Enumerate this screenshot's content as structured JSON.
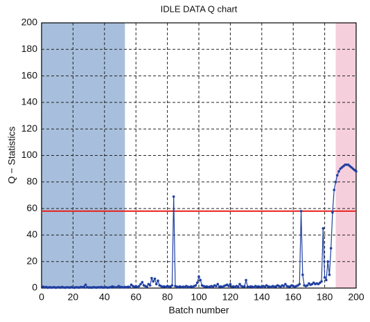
{
  "chart_data": {
    "type": "line",
    "title": "IDLE DATA Q chart",
    "xlabel": "Batch number",
    "ylabel": "Q − Statistics",
    "xlim": [
      0,
      200
    ],
    "ylim": [
      0,
      200
    ],
    "xticks": [
      0,
      20,
      40,
      60,
      80,
      100,
      120,
      140,
      160,
      180,
      200
    ],
    "yticks": [
      0,
      20,
      40,
      60,
      80,
      100,
      120,
      140,
      160,
      180,
      200
    ],
    "grid": true,
    "regions": [
      {
        "xlim": [
          0,
          53
        ],
        "color": "#a7bfdc"
      },
      {
        "xlim": [
          187,
          200
        ],
        "color": "#f6cfdd"
      }
    ],
    "limit": {
      "value": 58,
      "color": "#e8201c"
    },
    "x": [
      1,
      2,
      3,
      4,
      5,
      6,
      7,
      8,
      9,
      10,
      11,
      12,
      13,
      14,
      15,
      16,
      17,
      18,
      19,
      20,
      21,
      22,
      23,
      24,
      25,
      26,
      27,
      28,
      29,
      30,
      31,
      32,
      33,
      34,
      35,
      36,
      37,
      38,
      39,
      40,
      41,
      42,
      43,
      44,
      45,
      46,
      47,
      48,
      49,
      50,
      51,
      52,
      53,
      54,
      55,
      56,
      57,
      58,
      59,
      60,
      61,
      62,
      63,
      64,
      65,
      66,
      67,
      68,
      69,
      70,
      71,
      72,
      73,
      74,
      75,
      76,
      77,
      78,
      79,
      80,
      81,
      82,
      83,
      84,
      85,
      86,
      87,
      88,
      89,
      90,
      91,
      92,
      93,
      94,
      95,
      96,
      97,
      98,
      99,
      100,
      101,
      102,
      103,
      104,
      105,
      106,
      107,
      108,
      109,
      110,
      111,
      112,
      113,
      114,
      115,
      116,
      117,
      118,
      119,
      120,
      121,
      122,
      123,
      124,
      125,
      126,
      127,
      128,
      129,
      130,
      131,
      132,
      133,
      134,
      135,
      136,
      137,
      138,
      139,
      140,
      141,
      142,
      143,
      144,
      145,
      146,
      147,
      148,
      149,
      150,
      151,
      152,
      153,
      154,
      155,
      156,
      157,
      158,
      159,
      160,
      161,
      162,
      163,
      164,
      165,
      166,
      167,
      168,
      169,
      170,
      171,
      172,
      173,
      174,
      175,
      176,
      177,
      178,
      179,
      180,
      181,
      182,
      183,
      184,
      185,
      186,
      187,
      188,
      189,
      190,
      191,
      192,
      193,
      194,
      195,
      196,
      197,
      198,
      199,
      200
    ],
    "series": [
      {
        "color": "#1f3fa0",
        "values": [
          1,
          0.5,
          0.8,
          0.3,
          0.6,
          0.4,
          0.5,
          0.7,
          0.3,
          0.5,
          0.6,
          0.4,
          0.8,
          0.5,
          0.3,
          0.6,
          0.5,
          0.4,
          0.7,
          0.5,
          0.3,
          0.6,
          0.5,
          0.4,
          0.8,
          0.6,
          1.0,
          2.5,
          0.6,
          0.4,
          0.5,
          0.3,
          0.7,
          0.5,
          0.4,
          0.6,
          0.5,
          0.8,
          0.4,
          0.5,
          0.6,
          0.3,
          0.5,
          0.7,
          1.2,
          0.8,
          0.5,
          0.6,
          1.5,
          0.9,
          0.7,
          0.5,
          0.8,
          0.6,
          1.0,
          0.7,
          2.5,
          1.5,
          1,
          1.2,
          0.8,
          1.5,
          3,
          4.5,
          2,
          1.5,
          1,
          3,
          2,
          7.5,
          5,
          7,
          3,
          5.5,
          2,
          1.5,
          1,
          1.2,
          0.8,
          1.5,
          1,
          1.2,
          2,
          69,
          1.5,
          1,
          0.8,
          1.2,
          0.7,
          1,
          0.8,
          1.5,
          1,
          0.7,
          1.2,
          0.9,
          1.5,
          2,
          4,
          8.5,
          6,
          2,
          1.5,
          1,
          1.2,
          0.8,
          1,
          1.5,
          1,
          2,
          1.5,
          3,
          1,
          1.2,
          0.8,
          1.5,
          2,
          2.5,
          1.5,
          3,
          1,
          1.2,
          0.8,
          1.5,
          1,
          3,
          1.5,
          1,
          1.2,
          6,
          1,
          0.8,
          1.2,
          1,
          0.7,
          1.5,
          1,
          1.2,
          0.8,
          1,
          1.5,
          1,
          2,
          1.2,
          1,
          0.8,
          1.5,
          1,
          1.2,
          2,
          1.5,
          1,
          2,
          1.5,
          3,
          1.5,
          1,
          1.2,
          2,
          1.5,
          1,
          1.5,
          2,
          3,
          58,
          10,
          2,
          1.5,
          2,
          3.5,
          2.5,
          3,
          4,
          3,
          3.5,
          3,
          4,
          5,
          45,
          8,
          6,
          20,
          10,
          30,
          57,
          74,
          80,
          85,
          88,
          90,
          91,
          92,
          93,
          93,
          93,
          92,
          91,
          90,
          89,
          88
        ]
      }
    ]
  }
}
